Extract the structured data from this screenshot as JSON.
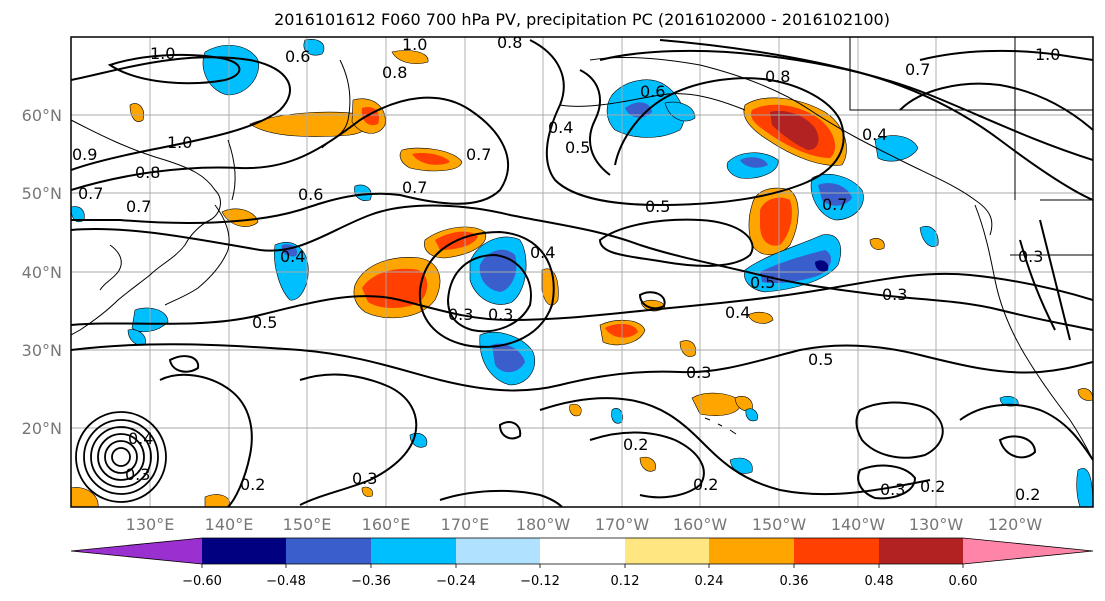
{
  "title": "2016101612 F060 700 hPa PV, precipitation PC (2016102000 - 2016102100)",
  "map": {
    "lon_labels": [
      "130°E",
      "140°E",
      "150°E",
      "160°E",
      "170°E",
      "180°W",
      "170°W",
      "160°W",
      "150°W",
      "140°W",
      "130°W",
      "120°W"
    ],
    "lat_labels": [
      "60°N",
      "50°N",
      "40°N",
      "30°N",
      "20°N"
    ],
    "contour_labels": [
      "1.0",
      "0.6",
      "1.0",
      "0.8",
      "0.8",
      "1.0",
      "0.7",
      "0.8",
      "0.7",
      "1.0",
      "0.9",
      "0.8",
      "0.7",
      "0.7",
      "0.6",
      "0.7",
      "0.4",
      "0.5",
      "0.6",
      "0.4",
      "0.5",
      "0.3",
      "0.5",
      "0.3",
      "0.4",
      "0.5",
      "0.4",
      "0.3",
      "0.5",
      "0.3",
      "0.2",
      "0.2",
      "0.3",
      "0.2",
      "0.3",
      "0.2",
      "0.2",
      "0.4",
      "0.3",
      "0.7",
      "0.3",
      "0.4"
    ]
  },
  "colorbar": {
    "tick_labels": [
      "−0.60",
      "−0.48",
      "−0.36",
      "−0.24",
      "−0.12",
      "0.12",
      "0.24",
      "0.36",
      "0.48",
      "0.60"
    ],
    "colors": [
      "#9b30d0",
      "#000080",
      "#3a5fcd",
      "#00bfff",
      "#b0e2ff",
      "#ffffff",
      "#ffe680",
      "#ffa500",
      "#ff4000",
      "#b22222",
      "#ff85a8"
    ]
  },
  "palette": {
    "neg_strong": "#3a5fcd",
    "neg": "#00bfff",
    "neg_weak": "#b0e2ff",
    "pos_weak": "#ffe680",
    "pos": "#ffa500",
    "pos_strong": "#ff4000",
    "pos_max": "#b22222",
    "navy": "#000080"
  }
}
